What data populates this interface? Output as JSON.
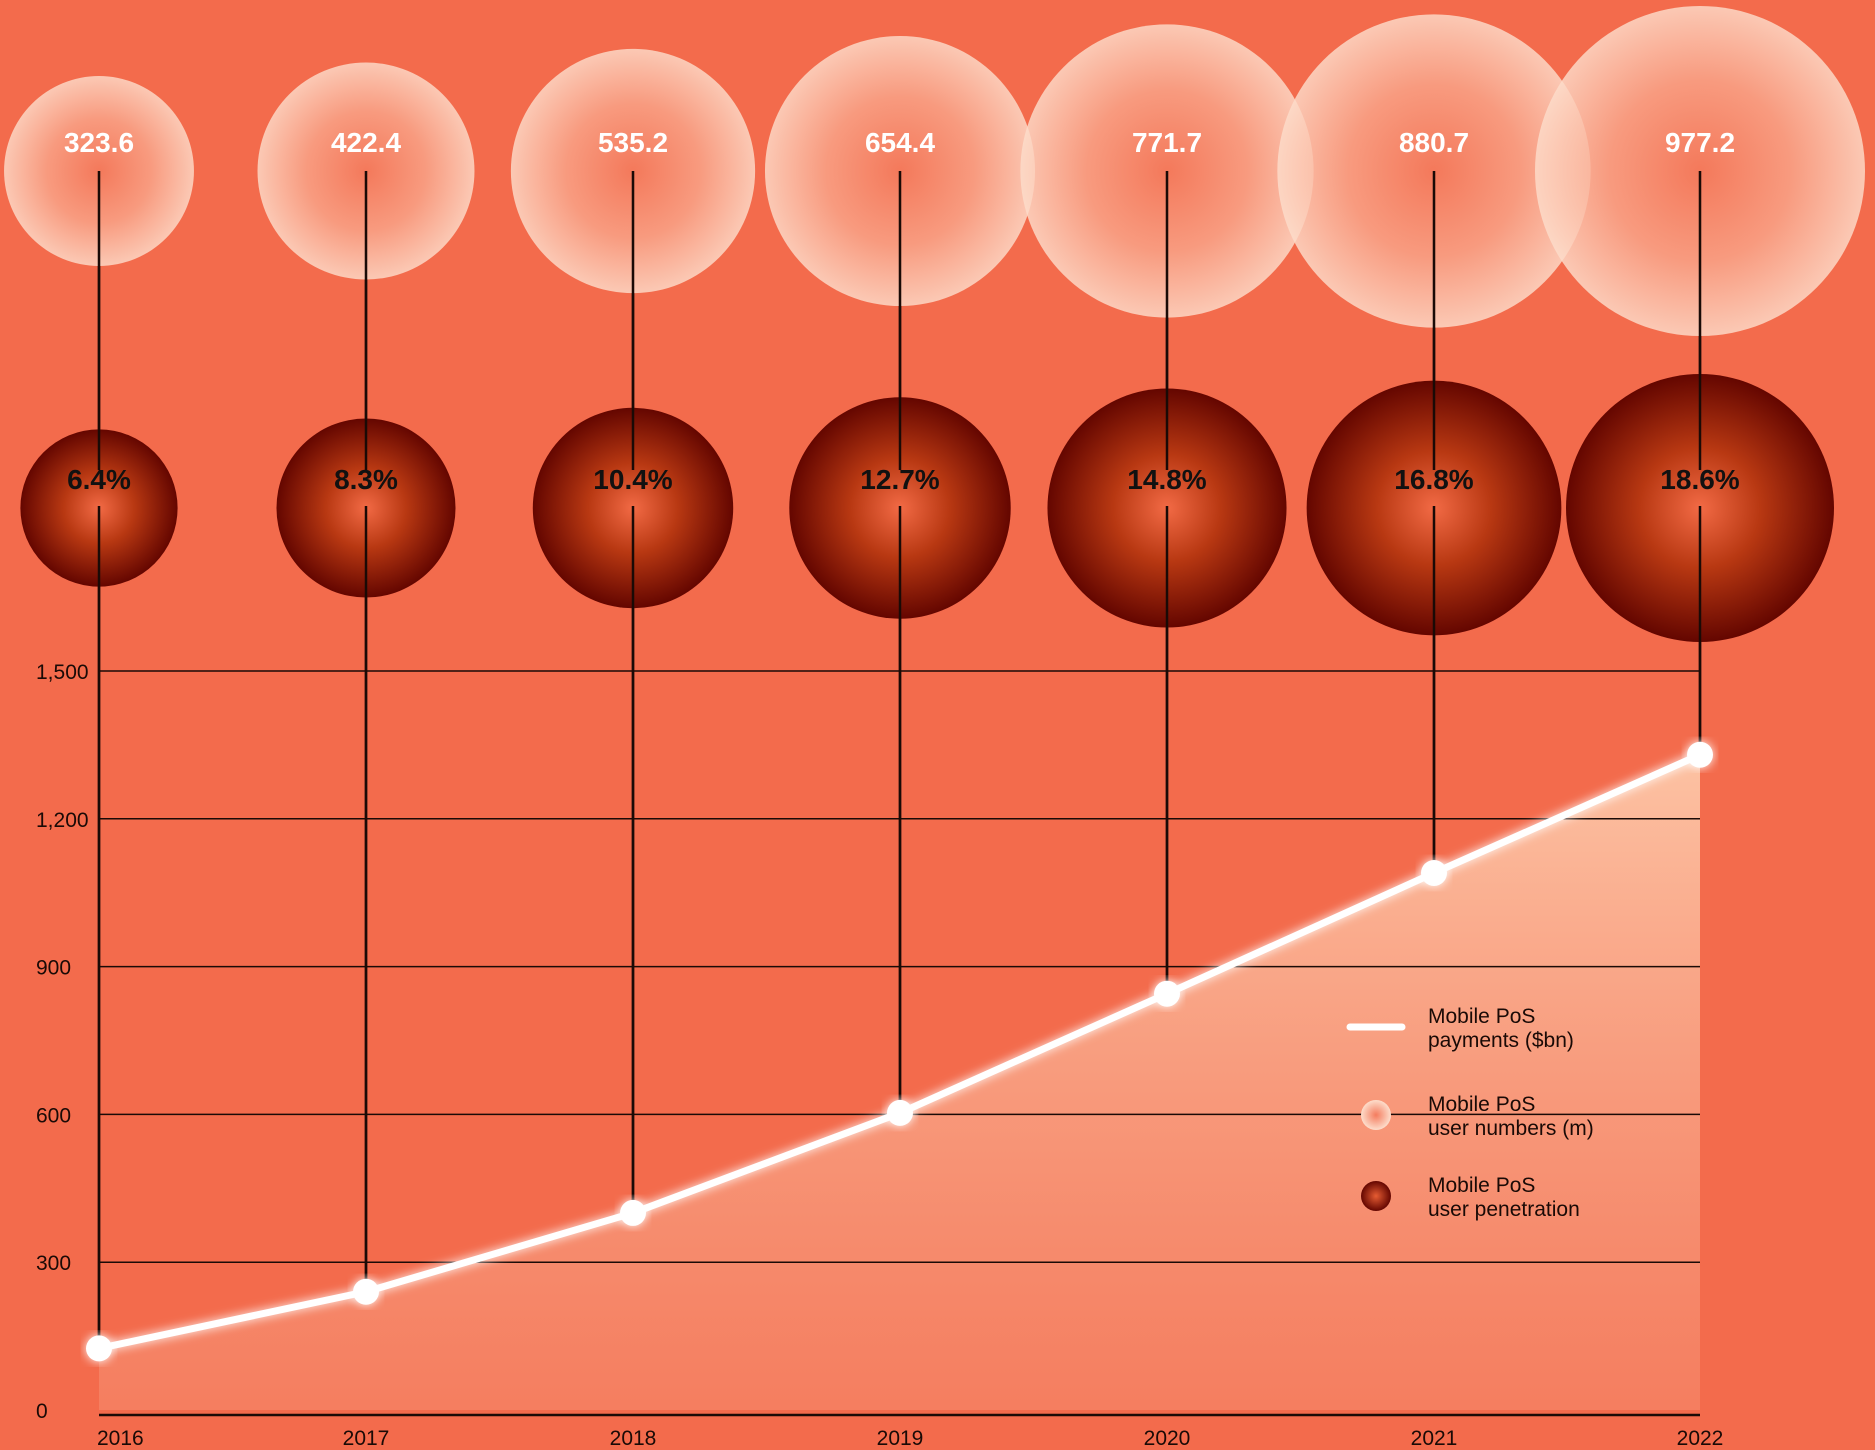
{
  "colors": {
    "background": "#F36B4C",
    "line": "#ffffff",
    "grid": "#1a0a06",
    "bubble_light": "#FCD0BC",
    "bubble_dark": "#6E0A00"
  },
  "chart_data": {
    "type": "line",
    "x": [
      "2016",
      "2017",
      "2018",
      "2019",
      "2020",
      "2021",
      "2022"
    ],
    "series": [
      {
        "name": "Mobile PoS payments ($bn)",
        "kind": "line-area",
        "values": [
          125,
          240,
          400,
          603,
          845,
          1090,
          1330
        ]
      },
      {
        "name": "Mobile PoS user numbers (m)",
        "kind": "bubble-light",
        "values": [
          323.6,
          422.4,
          535.2,
          654.4,
          771.7,
          880.7,
          977.2
        ],
        "labels": [
          "323.6",
          "422.4",
          "535.2",
          "654.4",
          "771.7",
          "880.7",
          "977.2"
        ]
      },
      {
        "name": "Mobile PoS user penetration",
        "kind": "bubble-dark",
        "values": [
          6.4,
          8.3,
          10.4,
          12.7,
          14.8,
          16.8,
          18.6
        ],
        "labels": [
          "6.4%",
          "8.3%",
          "10.4%",
          "12.7%",
          "14.8%",
          "16.8%",
          "18.6%"
        ]
      }
    ],
    "yticks": [
      0,
      300,
      600,
      900,
      1200,
      1500
    ],
    "ytick_labels": [
      "0",
      "300",
      "600",
      "900",
      "1,200",
      "1,500"
    ],
    "ylim": [
      0,
      1500
    ],
    "grid": true,
    "legend_position": "right",
    "legend": [
      {
        "lines": [
          "Mobile PoS",
          "payments ($bn)"
        ],
        "marker": "line"
      },
      {
        "lines": [
          "Mobile PoS",
          "user numbers (m)"
        ],
        "marker": "light-dot"
      },
      {
        "lines": [
          "Mobile PoS",
          "user penetration"
        ],
        "marker": "dark-dot"
      }
    ]
  }
}
